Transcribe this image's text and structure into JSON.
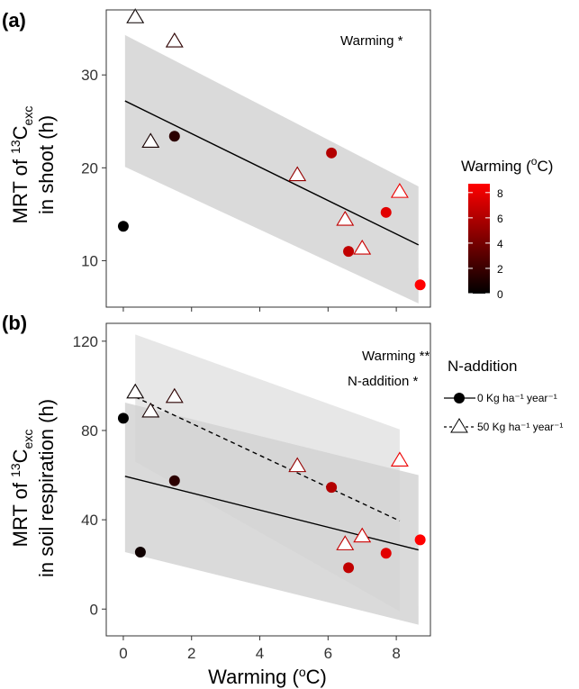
{
  "chart_data": [
    {
      "panel": "(a)",
      "type": "scatter",
      "ylabel_line1": "MRT of ",
      "ylabel_sup": "13",
      "ylabel_mid": "C",
      "ylabel_sub": "exc",
      "ylabel_line2": "in shoot (h)",
      "xlim": [
        -0.5,
        9
      ],
      "ylim": [
        5,
        37
      ],
      "yticks": [
        10,
        20,
        30
      ],
      "annotations": [
        "Warming *"
      ],
      "series": [
        {
          "marker": "circle",
          "points": [
            {
              "x": 0.0,
              "y": 13.7,
              "w": 0.0
            },
            {
              "x": 1.5,
              "y": 23.4,
              "w": 1.5
            },
            {
              "x": 6.1,
              "y": 21.6,
              "w": 6.1
            },
            {
              "x": 6.6,
              "y": 11.0,
              "w": 6.6
            },
            {
              "x": 7.7,
              "y": 15.2,
              "w": 7.7
            },
            {
              "x": 8.7,
              "y": 7.4,
              "w": 8.7
            }
          ]
        },
        {
          "marker": "triangle",
          "points": [
            {
              "x": 0.35,
              "y": 36.2,
              "w": 0.35
            },
            {
              "x": 0.8,
              "y": 22.8,
              "w": 0.8
            },
            {
              "x": 1.5,
              "y": 33.6,
              "w": 1.5
            },
            {
              "x": 5.1,
              "y": 19.2,
              "w": 5.1
            },
            {
              "x": 6.5,
              "y": 14.4,
              "w": 6.5
            },
            {
              "x": 7.0,
              "y": 11.3,
              "w": 7.0
            },
            {
              "x": 8.1,
              "y": 17.4,
              "w": 8.1
            }
          ]
        }
      ],
      "fits": [
        {
          "style": "solid",
          "x": [
            0.05,
            8.65
          ],
          "y": [
            27.2,
            11.7
          ],
          "ci_upper": [
            34.3,
            18.0
          ],
          "ci_lower": [
            20.1,
            5.4
          ]
        }
      ]
    },
    {
      "panel": "(b)",
      "type": "scatter",
      "ylabel_line1": "MRT of ",
      "ylabel_sup": "13",
      "ylabel_mid": "C",
      "ylabel_sub": "exc",
      "ylabel_line2": "in soil respiration (h)",
      "xlabel_main": "Warming (",
      "xlabel_sup": "o",
      "xlabel_end": "C)",
      "xlim": [
        -0.5,
        9
      ],
      "ylim": [
        -12,
        128
      ],
      "yticks": [
        0,
        40,
        80,
        120
      ],
      "xticks": [
        0,
        2,
        4,
        6,
        8
      ],
      "annotations": [
        "Warming **",
        "N-addition *"
      ],
      "series": [
        {
          "name": "0 Kg ha⁻¹ year⁻¹",
          "marker": "circle",
          "points": [
            {
              "x": 0.0,
              "y": 85.5,
              "w": 0.0
            },
            {
              "x": 0.5,
              "y": 25.5,
              "w": 0.5
            },
            {
              "x": 1.5,
              "y": 57.5,
              "w": 1.5
            },
            {
              "x": 6.1,
              "y": 54.5,
              "w": 6.1
            },
            {
              "x": 6.6,
              "y": 18.5,
              "w": 6.6
            },
            {
              "x": 7.7,
              "y": 25.0,
              "w": 7.7
            },
            {
              "x": 8.7,
              "y": 31.0,
              "w": 8.7
            }
          ]
        },
        {
          "name": "50 Kg ha⁻¹ year⁻¹",
          "marker": "triangle",
          "points": [
            {
              "x": 0.35,
              "y": 97.0,
              "w": 0.35
            },
            {
              "x": 0.8,
              "y": 88.5,
              "w": 0.8
            },
            {
              "x": 1.5,
              "y": 95.0,
              "w": 1.5
            },
            {
              "x": 5.1,
              "y": 64.0,
              "w": 5.1
            },
            {
              "x": 6.5,
              "y": 29.0,
              "w": 6.5
            },
            {
              "x": 7.0,
              "y": 32.5,
              "w": 7.0
            },
            {
              "x": 8.1,
              "y": 66.5,
              "w": 8.1
            }
          ]
        }
      ],
      "fits": [
        {
          "style": "solid",
          "x": [
            0.05,
            8.65
          ],
          "y": [
            59.5,
            26.5
          ],
          "ci_upper": [
            92.5,
            60.0
          ],
          "ci_lower": [
            25.5,
            -7.0
          ]
        },
        {
          "style": "dashed",
          "x": [
            0.35,
            8.1
          ],
          "y": [
            95.0,
            39.5
          ],
          "ci_upper": [
            123.0,
            80.5
          ],
          "ci_lower": [
            66.0,
            -1.0
          ]
        }
      ]
    }
  ],
  "colorbar": {
    "title_main": "Warming (",
    "title_sup": "o",
    "title_end": "C)",
    "ticks": [
      0,
      2,
      4,
      6,
      8
    ],
    "range": [
      0,
      8.7
    ],
    "color_low": "#000000",
    "color_high": "#ff0000"
  },
  "legend": {
    "title": "N-addition"
  },
  "colors": {
    "ci_fill": "#d3d3d3",
    "ci_overlap": "#b8b8b8",
    "triangle_fill": "#ffffff"
  }
}
